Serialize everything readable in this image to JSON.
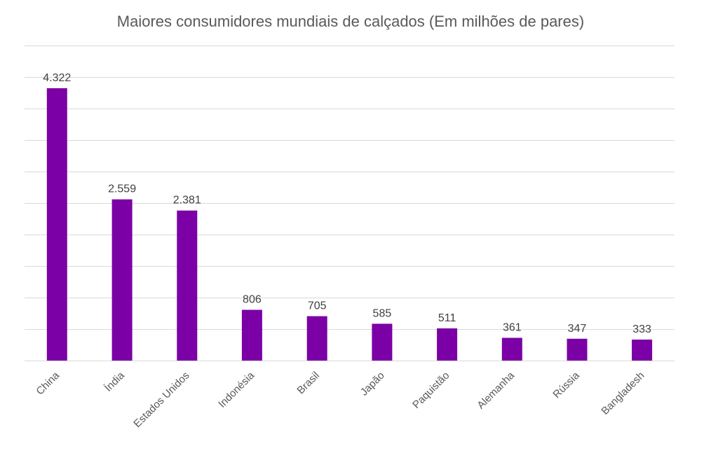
{
  "chart_data": {
    "type": "bar",
    "title": "Maiores consumidores mundiais de calçados (Em milhões de pares)",
    "xlabel": "",
    "ylabel": "",
    "categories": [
      "China",
      "Índia",
      "Estados Unidos",
      "Indonésia",
      "Brasil",
      "Japão",
      "Paquistão",
      "Alemanha",
      "Rússia",
      "Bangladesh"
    ],
    "values": [
      4322,
      2559,
      2381,
      806,
      705,
      585,
      511,
      361,
      347,
      333
    ],
    "value_labels": [
      "4.322",
      "2.559",
      "2.381",
      "806",
      "705",
      "585",
      "511",
      "361",
      "347",
      "333"
    ],
    "ylim": [
      0,
      5000
    ],
    "grid_step": 500,
    "grid": true,
    "bar_color": "#7B00A6",
    "legend": "none"
  }
}
